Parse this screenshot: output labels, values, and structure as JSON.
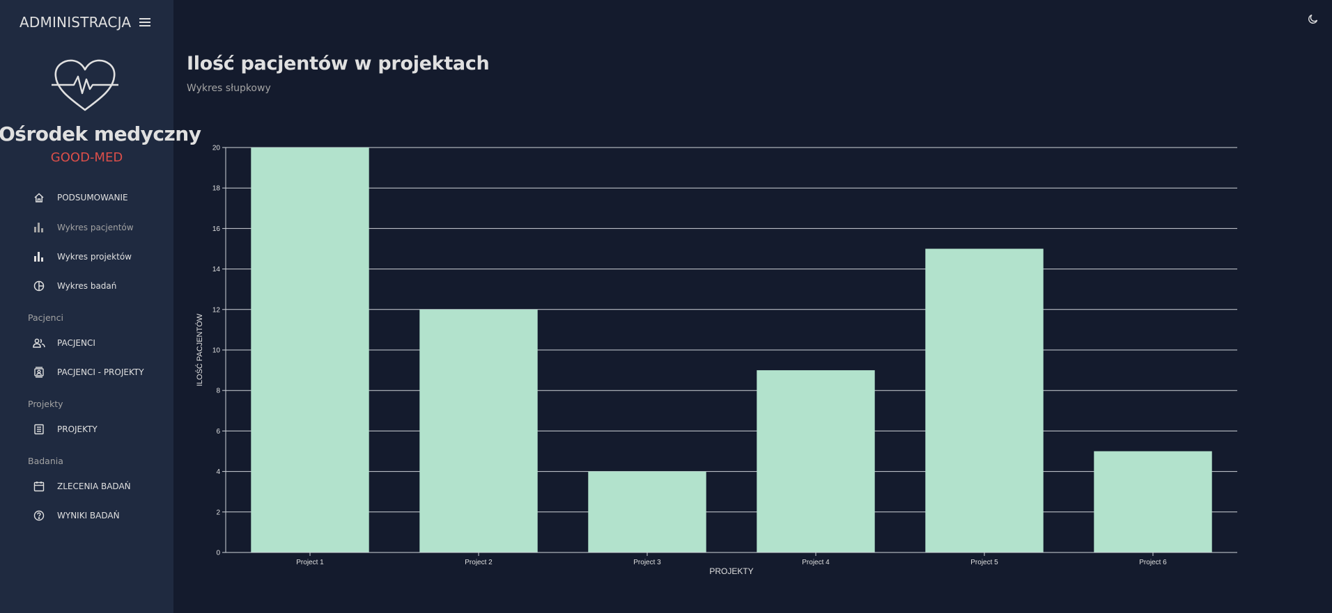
{
  "sidebar": {
    "header_title": "ADMINISTRACJA",
    "org_name": "Ośrodek medyczny",
    "org_sub": "GOOD-MED",
    "items": [
      {
        "label": "PODSUMOWANIE",
        "icon": "home-icon"
      },
      {
        "label": "Wykres pacjentów",
        "icon": "bar-chart-icon"
      },
      {
        "label": "Wykres projektów",
        "icon": "bar-chart-icon"
      },
      {
        "label": "Wykres badań",
        "icon": "pie-chart-icon"
      },
      {
        "label": "PACJENCI",
        "icon": "people-icon"
      },
      {
        "label": "PACJENCI - PROJEKTY",
        "icon": "contact-page-icon"
      },
      {
        "label": "PROJEKTY",
        "icon": "receipt-icon"
      },
      {
        "label": "ZLECENIA BADAŃ",
        "icon": "calendar-icon"
      },
      {
        "label": "WYNIKI BADAŃ",
        "icon": "help-circle-icon"
      }
    ],
    "sections": [
      "Pacjenci",
      "Projekty",
      "Badania"
    ]
  },
  "header": {
    "title": "Ilość pacjentów w projektach",
    "subtitle": "Wykres słupkowy"
  },
  "colors": {
    "background": "#141b2d",
    "sidebar": "#1f2a40",
    "accent_red": "#db4f4a",
    "bar": "#b2e2cc"
  },
  "chart_data": {
    "type": "bar",
    "categories": [
      "Project 1",
      "Project 2",
      "Project 3",
      "Project 4",
      "Project 5",
      "Project 6"
    ],
    "values": [
      20,
      12,
      4,
      9,
      15,
      5
    ],
    "xlabel": "PROJEKTY",
    "ylabel": "ILOŚĆ PACJENTÓW",
    "ylim": [
      0,
      20
    ],
    "yticks": [
      0,
      2,
      4,
      6,
      8,
      10,
      12,
      14,
      16,
      18,
      20
    ],
    "grid": true
  }
}
